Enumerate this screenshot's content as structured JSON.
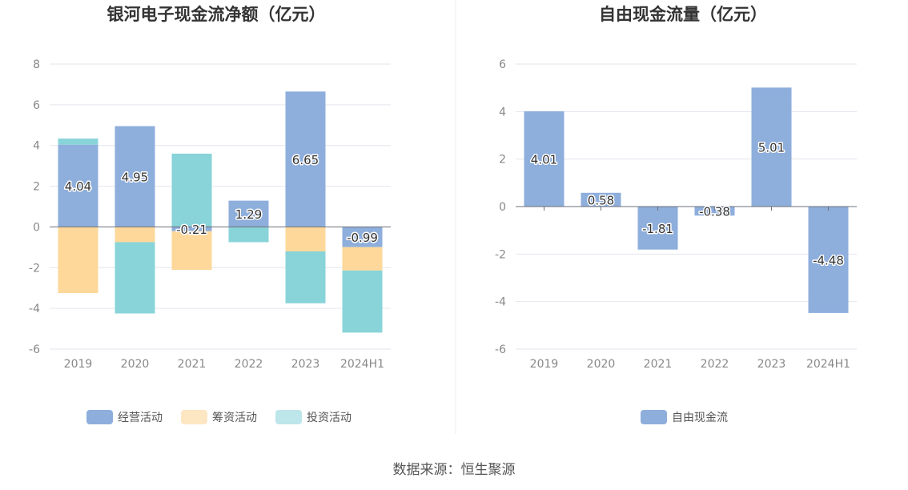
{
  "source": "数据来源：恒生聚源",
  "chart_data": [
    {
      "type": "bar",
      "stacked": true,
      "title": "银河电子现金流净额（亿元）",
      "categories": [
        "2019",
        "2020",
        "2021",
        "2022",
        "2023",
        "2024H1"
      ],
      "ylim": [
        -6,
        8
      ],
      "yticks": [
        -6,
        -4,
        -2,
        0,
        2,
        4,
        6,
        8
      ],
      "grid": true,
      "legend_position": "bottom",
      "series": [
        {
          "name": "经营活动",
          "color": "#8eaedc",
          "values": [
            4.04,
            4.95,
            -0.21,
            1.29,
            6.65,
            -0.99
          ],
          "labels": [
            "4.04",
            "4.95",
            "-0.21",
            "1.29",
            "6.65",
            "-0.99"
          ]
        },
        {
          "name": "筹资活动",
          "color": "#fdd89a",
          "legend_color": "#fde6c2",
          "values": [
            -3.25,
            -0.75,
            -1.9,
            0.0,
            -1.2,
            -1.15
          ]
        },
        {
          "name": "投资活动",
          "color": "#88d4d8",
          "legend_color": "#bde6ea",
          "values": [
            0.3,
            -3.5,
            3.6,
            -0.75,
            -2.55,
            -3.05
          ]
        }
      ]
    },
    {
      "type": "bar",
      "title": "自由现金流量（亿元）",
      "categories": [
        "2019",
        "2020",
        "2021",
        "2022",
        "2023",
        "2024H1"
      ],
      "ylim": [
        -6,
        6
      ],
      "yticks": [
        -6,
        -4,
        -2,
        0,
        2,
        4,
        6
      ],
      "grid": true,
      "legend_position": "bottom",
      "series": [
        {
          "name": "自由现金流",
          "color": "#8eaedc",
          "values": [
            4.01,
            0.58,
            -1.81,
            -0.38,
            5.01,
            -4.48
          ],
          "labels": [
            "4.01",
            "0.58",
            "-1.81",
            "-0.38",
            "5.01",
            "-4.48"
          ]
        }
      ]
    }
  ]
}
